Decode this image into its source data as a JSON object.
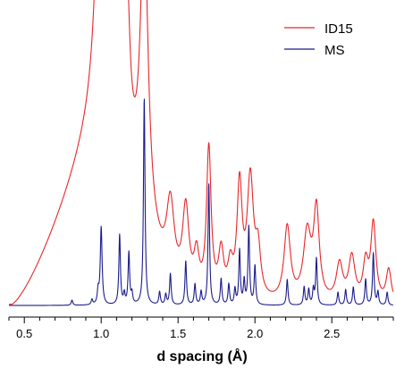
{
  "chart_data": {
    "type": "line",
    "title": "",
    "xlabel": "d spacing (Å)",
    "ylabel": "",
    "xlim": [
      0.4,
      2.9
    ],
    "x_ticks": [
      0.5,
      1.0,
      1.5,
      2.0,
      2.5
    ],
    "x_tick_labels": [
      "0.5",
      "1.0",
      "1.5",
      "2.0",
      "2.5"
    ],
    "x_minor_tick_step": 0.1,
    "y_axis_visible": false,
    "grid": false,
    "legend_position": "top-right",
    "series": [
      {
        "name": "ID15",
        "color": "#e8262a",
        "baseline": 0.0,
        "broad_shoulder": {
          "start": 0.42,
          "peak": 0.97,
          "height": 0.53
        },
        "peaks": [
          {
            "x": 1.0,
            "height": 0.8,
            "width": 0.035
          },
          {
            "x": 1.12,
            "height": 0.6,
            "width": 0.03
          },
          {
            "x": 1.17,
            "height": 0.3,
            "width": 0.02
          },
          {
            "x": 1.28,
            "height": 0.8,
            "width": 0.03
          },
          {
            "x": 1.45,
            "height": 0.2,
            "width": 0.03
          },
          {
            "x": 1.55,
            "height": 0.22,
            "width": 0.025
          },
          {
            "x": 1.62,
            "height": 0.1,
            "width": 0.02
          },
          {
            "x": 1.7,
            "height": 0.4,
            "width": 0.018
          },
          {
            "x": 1.78,
            "height": 0.12,
            "width": 0.02
          },
          {
            "x": 1.84,
            "height": 0.08,
            "width": 0.02
          },
          {
            "x": 1.9,
            "height": 0.3,
            "width": 0.02
          },
          {
            "x": 1.97,
            "height": 0.32,
            "width": 0.025
          },
          {
            "x": 2.02,
            "height": 0.12,
            "width": 0.02
          },
          {
            "x": 2.21,
            "height": 0.2,
            "width": 0.025
          },
          {
            "x": 2.34,
            "height": 0.18,
            "width": 0.03
          },
          {
            "x": 2.4,
            "height": 0.24,
            "width": 0.022
          },
          {
            "x": 2.55,
            "height": 0.1,
            "width": 0.025
          },
          {
            "x": 2.63,
            "height": 0.12,
            "width": 0.025
          },
          {
            "x": 2.72,
            "height": 0.1,
            "width": 0.02
          },
          {
            "x": 2.77,
            "height": 0.21,
            "width": 0.02
          },
          {
            "x": 2.87,
            "height": 0.09,
            "width": 0.02
          }
        ]
      },
      {
        "name": "MS",
        "color": "#1c1c8c",
        "baseline": 0.0,
        "peaks": [
          {
            "x": 0.81,
            "height": 0.02,
            "width": 0.006
          },
          {
            "x": 0.94,
            "height": 0.02,
            "width": 0.006
          },
          {
            "x": 0.98,
            "height": 0.05,
            "width": 0.006
          },
          {
            "x": 1.0,
            "height": 0.3,
            "width": 0.007
          },
          {
            "x": 1.12,
            "height": 0.27,
            "width": 0.006
          },
          {
            "x": 1.15,
            "height": 0.04,
            "width": 0.006
          },
          {
            "x": 1.18,
            "height": 0.2,
            "width": 0.006
          },
          {
            "x": 1.2,
            "height": 0.04,
            "width": 0.006
          },
          {
            "x": 1.28,
            "height": 0.8,
            "width": 0.006
          },
          {
            "x": 1.38,
            "height": 0.05,
            "width": 0.006
          },
          {
            "x": 1.42,
            "height": 0.04,
            "width": 0.006
          },
          {
            "x": 1.45,
            "height": 0.12,
            "width": 0.006
          },
          {
            "x": 1.55,
            "height": 0.17,
            "width": 0.006
          },
          {
            "x": 1.61,
            "height": 0.08,
            "width": 0.006
          },
          {
            "x": 1.65,
            "height": 0.05,
            "width": 0.006
          },
          {
            "x": 1.7,
            "height": 0.47,
            "width": 0.006
          },
          {
            "x": 1.78,
            "height": 0.1,
            "width": 0.006
          },
          {
            "x": 1.83,
            "height": 0.08,
            "width": 0.006
          },
          {
            "x": 1.87,
            "height": 0.06,
            "width": 0.006
          },
          {
            "x": 1.9,
            "height": 0.21,
            "width": 0.006
          },
          {
            "x": 1.93,
            "height": 0.09,
            "width": 0.006
          },
          {
            "x": 1.96,
            "height": 0.3,
            "width": 0.006
          },
          {
            "x": 2.0,
            "height": 0.15,
            "width": 0.006
          },
          {
            "x": 2.21,
            "height": 0.1,
            "width": 0.006
          },
          {
            "x": 2.32,
            "height": 0.07,
            "width": 0.006
          },
          {
            "x": 2.35,
            "height": 0.06,
            "width": 0.006
          },
          {
            "x": 2.38,
            "height": 0.06,
            "width": 0.006
          },
          {
            "x": 2.4,
            "height": 0.18,
            "width": 0.006
          },
          {
            "x": 2.54,
            "height": 0.05,
            "width": 0.006
          },
          {
            "x": 2.59,
            "height": 0.06,
            "width": 0.006
          },
          {
            "x": 2.64,
            "height": 0.07,
            "width": 0.006
          },
          {
            "x": 2.72,
            "height": 0.1,
            "width": 0.006
          },
          {
            "x": 2.77,
            "height": 0.2,
            "width": 0.006
          },
          {
            "x": 2.8,
            "height": 0.05,
            "width": 0.006
          },
          {
            "x": 2.86,
            "height": 0.05,
            "width": 0.006
          }
        ]
      }
    ]
  }
}
